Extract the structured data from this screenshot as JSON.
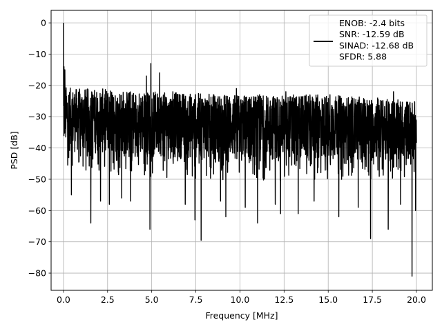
{
  "chart_data": {
    "type": "line",
    "title": "",
    "xlabel": "Frequency [MHz]",
    "ylabel": "PSD [dB]",
    "xlim": [
      -0.7,
      20.9
    ],
    "ylim": [
      -85.5,
      4.0
    ],
    "x_ticks": [
      0.0,
      2.5,
      5.0,
      7.5,
      10.0,
      12.5,
      15.0,
      17.5,
      20.0
    ],
    "x_tick_labels": [
      "0.0",
      "2.5",
      "5.0",
      "7.5",
      "10.0",
      "12.5",
      "15.0",
      "17.5",
      "20.0"
    ],
    "y_ticks": [
      0,
      -10,
      -20,
      -30,
      -40,
      -50,
      -60,
      -70,
      -80
    ],
    "y_tick_labels": [
      "0",
      "−10",
      "−20",
      "−30",
      "−40",
      "−50",
      "−60",
      "−70",
      "−80"
    ],
    "grid": true,
    "legend_position": "top-right",
    "line_color": "#000000",
    "series": [
      {
        "legend_lines": [
          "ENOB: -2.4 bits",
          "SNR: -12.59 dB",
          "SINAD: -12.68 dB",
          "SFDR: 5.88"
        ],
        "frequency_range": [
          0.0,
          20.0
        ],
        "noise_floor_upper_envelope": [
          [
            0.0,
            -20
          ],
          [
            0.5,
            -21
          ],
          [
            2.0,
            -21
          ],
          [
            5.0,
            -22
          ],
          [
            10.0,
            -23
          ],
          [
            15.0,
            -23
          ],
          [
            20.0,
            -25
          ]
        ],
        "noise_floor_lower_envelope": [
          [
            0.0,
            -45
          ],
          [
            5.0,
            -47
          ],
          [
            10.0,
            -48
          ],
          [
            15.0,
            -48
          ],
          [
            20.0,
            -47
          ]
        ],
        "spikes": [
          {
            "x": 0.0,
            "y": 0.0
          },
          {
            "x": 0.03,
            "y": -14
          },
          {
            "x": 0.08,
            "y": -15
          },
          {
            "x": 4.95,
            "y": -13
          },
          {
            "x": 4.7,
            "y": -17
          },
          {
            "x": 5.45,
            "y": -16
          },
          {
            "x": 1.55,
            "y": -64
          },
          {
            "x": 4.9,
            "y": -66
          },
          {
            "x": 7.8,
            "y": -69.5
          },
          {
            "x": 7.45,
            "y": -63
          },
          {
            "x": 17.4,
            "y": -69
          },
          {
            "x": 18.4,
            "y": -66
          },
          {
            "x": 19.75,
            "y": -81
          },
          {
            "x": 19.95,
            "y": -60
          },
          {
            "x": 11.0,
            "y": -64
          },
          {
            "x": 9.2,
            "y": -62
          },
          {
            "x": 12.3,
            "y": -61
          },
          {
            "x": 15.6,
            "y": -62
          },
          {
            "x": 13.3,
            "y": -61
          },
          {
            "x": 2.1,
            "y": -57
          },
          {
            "x": 2.6,
            "y": -58
          },
          {
            "x": 3.8,
            "y": -57
          },
          {
            "x": 6.9,
            "y": -58
          },
          {
            "x": 8.9,
            "y": -57
          },
          {
            "x": 10.3,
            "y": -59
          },
          {
            "x": 16.7,
            "y": -59
          },
          {
            "x": 19.1,
            "y": -58
          },
          {
            "x": 14.2,
            "y": -57
          },
          {
            "x": 3.3,
            "y": -56
          },
          {
            "x": 0.45,
            "y": -55
          },
          {
            "x": 12.0,
            "y": -58
          },
          {
            "x": 17.8,
            "y": -24
          },
          {
            "x": 12.6,
            "y": -22
          },
          {
            "x": 9.8,
            "y": -21
          },
          {
            "x": 15.1,
            "y": -23
          },
          {
            "x": 18.7,
            "y": -22
          },
          {
            "x": 6.2,
            "y": -22
          }
        ]
      }
    ]
  }
}
